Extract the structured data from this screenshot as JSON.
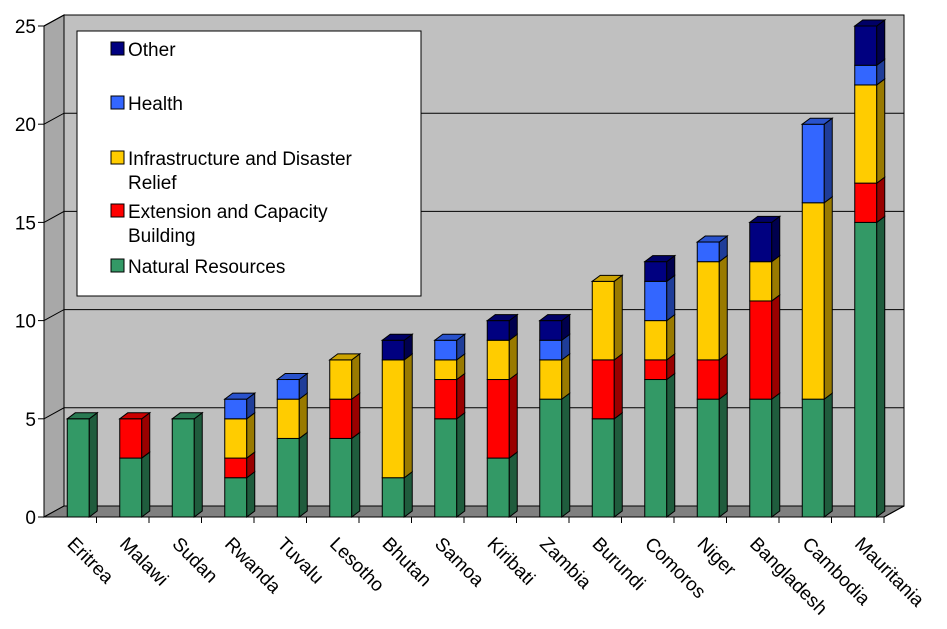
{
  "chart_data": {
    "type": "bar",
    "stacked": true,
    "three_d": true,
    "title": "",
    "xlabel": "",
    "ylabel": "",
    "ylim": [
      0,
      25
    ],
    "yticks": [
      0,
      5,
      10,
      15,
      20,
      25
    ],
    "grid": true,
    "legend_position": "top-left",
    "categories": [
      "Eritrea",
      "Malawi",
      "Sudan",
      "Rwanda",
      "Tuvalu",
      "Lesotho",
      "Bhutan",
      "Samoa",
      "Kiribati",
      "Zambia",
      "Burundi",
      "Comoros",
      "Niger",
      "Bangladesh",
      "Cambodia",
      "Mauritania"
    ],
    "series": [
      {
        "name": "Natural Resources",
        "color": "#339966",
        "values": [
          5,
          3,
          5,
          2,
          4,
          4,
          2,
          5,
          3,
          6,
          5,
          7,
          6,
          6,
          6,
          15
        ]
      },
      {
        "name": "Extension and Capacity Building",
        "color": "#ff0000",
        "values": [
          0,
          2,
          0,
          1,
          0,
          2,
          0,
          2,
          4,
          0,
          3,
          1,
          2,
          5,
          0,
          2
        ]
      },
      {
        "name": "Infrastructure and Disaster Relief",
        "color": "#ffcc00",
        "values": [
          0,
          0,
          0,
          2,
          2,
          2,
          6,
          1,
          2,
          2,
          4,
          2,
          5,
          2,
          10,
          5
        ]
      },
      {
        "name": "Health",
        "color": "#3366ff",
        "values": [
          0,
          0,
          0,
          1,
          1,
          0,
          0,
          1,
          0,
          1,
          0,
          2,
          1,
          0,
          4,
          1
        ]
      },
      {
        "name": "Other",
        "color": "#000080",
        "values": [
          0,
          0,
          0,
          0,
          0,
          0,
          1,
          0,
          1,
          1,
          0,
          1,
          0,
          2,
          0,
          2
        ]
      }
    ],
    "legend_order": [
      "Other",
      "Health",
      "Infrastructure and Disaster Relief",
      "Extension and Capacity Building",
      "Natural Resources"
    ],
    "legend_lines": {
      "Other": [
        "Other"
      ],
      "Health": [
        "Health"
      ],
      "Infrastructure and Disaster Relief": [
        "Infrastructure and Disaster",
        "Relief"
      ],
      "Extension and Capacity Building": [
        "Extension and Capacity",
        "Building"
      ],
      "Natural Resources": [
        "Natural Resources"
      ]
    }
  }
}
